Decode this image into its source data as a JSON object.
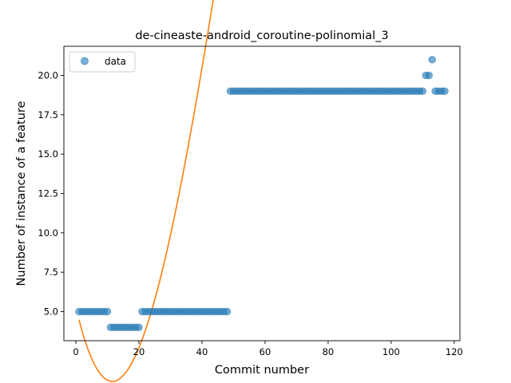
{
  "chart_data": {
    "type": "scatter",
    "title": "de-cineaste-android_coroutine-polinomial_3",
    "xlabel": "Commit number",
    "ylabel": "Number of instance of a feature",
    "xlim": [
      -3.8,
      121.8
    ],
    "ylim": [
      3.15,
      21.85
    ],
    "xticks": [
      0,
      20,
      40,
      60,
      80,
      100,
      120
    ],
    "xtick_labels": [
      "0",
      "20",
      "40",
      "60",
      "80",
      "100",
      "120"
    ],
    "yticks": [
      5.0,
      7.5,
      10.0,
      12.5,
      15.0,
      17.5,
      20.0
    ],
    "ytick_labels": [
      "5.0",
      "7.5",
      "10.0",
      "12.5",
      "15.0",
      "17.5",
      "20.0"
    ],
    "legend": {
      "position": "upper-left",
      "entries": [
        "data"
      ]
    },
    "grid": false,
    "series": [
      {
        "name": "data",
        "kind": "scatter",
        "color": "#1f77b4",
        "x": [
          1,
          2,
          3,
          4,
          5,
          6,
          7,
          8,
          9,
          10,
          11,
          12,
          13,
          14,
          15,
          16,
          17,
          18,
          19,
          20,
          21,
          22,
          23,
          24,
          25,
          26,
          27,
          28,
          29,
          30,
          31,
          32,
          33,
          34,
          35,
          36,
          37,
          38,
          39,
          40,
          41,
          42,
          43,
          44,
          45,
          46,
          47,
          48,
          49,
          50,
          51,
          52,
          53,
          54,
          55,
          56,
          57,
          58,
          59,
          60,
          61,
          62,
          63,
          64,
          65,
          66,
          67,
          68,
          69,
          70,
          71,
          72,
          73,
          74,
          75,
          76,
          77,
          78,
          79,
          80,
          81,
          82,
          83,
          84,
          85,
          86,
          87,
          88,
          89,
          90,
          91,
          92,
          93,
          94,
          95,
          96,
          97,
          98,
          99,
          100,
          101,
          102,
          103,
          104,
          105,
          106,
          107,
          108,
          109,
          110,
          111,
          112,
          113,
          114,
          115,
          116,
          117
        ],
        "y": [
          5,
          5,
          5,
          5,
          5,
          5,
          5,
          5,
          5,
          5,
          4,
          4,
          4,
          4,
          4,
          4,
          4,
          4,
          4,
          4,
          5,
          5,
          5,
          5,
          5,
          5,
          5,
          5,
          5,
          5,
          5,
          5,
          5,
          5,
          5,
          5,
          5,
          5,
          5,
          5,
          5,
          5,
          5,
          5,
          5,
          5,
          5,
          5,
          19,
          19,
          19,
          19,
          19,
          19,
          19,
          19,
          19,
          19,
          19,
          19,
          19,
          19,
          19,
          19,
          19,
          19,
          19,
          19,
          19,
          19,
          19,
          19,
          19,
          19,
          19,
          19,
          19,
          19,
          19,
          19,
          19,
          19,
          19,
          19,
          19,
          19,
          19,
          19,
          19,
          19,
          19,
          19,
          19,
          19,
          19,
          19,
          19,
          19,
          19,
          19,
          19,
          19,
          19,
          19,
          19,
          19,
          19,
          19,
          19,
          19,
          20,
          20,
          21,
          19,
          19,
          19,
          19
        ]
      },
      {
        "kind": "line",
        "fit": "polynomial degree 3",
        "color": "#ff7f0e",
        "x_range": [
          1,
          117
        ],
        "coefficients": [
          5.2924,
          -0.8542,
          0.04162,
          -0.0002694
        ]
      }
    ]
  }
}
